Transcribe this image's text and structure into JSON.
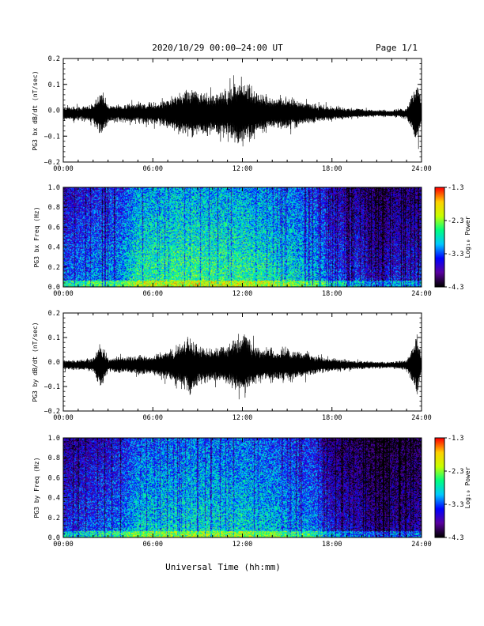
{
  "header": {
    "title": "2020/10/29  00:00–24:00 UT",
    "page": "Page 1/1"
  },
  "footer": {
    "xlabel": "Universal Time (hh:mm)"
  },
  "colors": {
    "trace": "#000000",
    "colormap": [
      "#000000",
      "#5a00a0",
      "#0000ff",
      "#00c8ff",
      "#00ff80",
      "#c8ff00",
      "#ffd000",
      "#ff0000"
    ]
  },
  "chart_data": [
    {
      "type": "line",
      "title": "",
      "xlabel": "",
      "ylabel": "PG3 bx dB/dt (nT/sec)",
      "xlim": [
        0,
        24
      ],
      "ylim": [
        -0.2,
        0.2
      ],
      "x_tick_labels": [
        "00:00",
        "06:00",
        "12:00",
        "18:00",
        "24:00"
      ],
      "y_tick_labels": [
        "0.2",
        "0.1",
        "0.0",
        "−0.1",
        "−0.2"
      ],
      "amplitude_envelope_hours": [
        0,
        1,
        2,
        2.5,
        3,
        4,
        5,
        6,
        7,
        8,
        9,
        10,
        11,
        12,
        13,
        14,
        15,
        16,
        17,
        18,
        19,
        20,
        21,
        22,
        23,
        23.7,
        24
      ],
      "amplitude_envelope_values": [
        0.04,
        0.04,
        0.05,
        0.15,
        0.05,
        0.05,
        0.06,
        0.06,
        0.08,
        0.12,
        0.13,
        0.12,
        0.13,
        0.2,
        0.12,
        0.09,
        0.09,
        0.07,
        0.05,
        0.04,
        0.03,
        0.025,
        0.02,
        0.02,
        0.03,
        0.19,
        0.04
      ],
      "grid": false,
      "legend": "none"
    },
    {
      "type": "heatmap",
      "title": "",
      "xlabel": "",
      "ylabel": "PG3 bx Freq (Hz)",
      "xlim": [
        0,
        24
      ],
      "ylim": [
        0,
        1.0
      ],
      "x_tick_labels": [
        "00:00",
        "06:00",
        "12:00",
        "18:00",
        "24:00"
      ],
      "y_tick_labels": [
        "1.0",
        "0.8",
        "0.6",
        "0.4",
        "0.2",
        "0.0"
      ],
      "colorbar_label": "Log₁₀ Power",
      "colorbar_range": [
        -4.3,
        -1.3
      ],
      "colorbar_tick_labels": [
        "-1.3",
        "-2.3",
        "-3.3",
        "-4.3"
      ],
      "power_profile_hours": [
        0,
        2,
        4,
        5,
        8,
        12,
        15,
        17,
        18,
        20,
        21.5,
        22,
        23,
        24
      ],
      "power_profile_values": [
        -3.3,
        -3.1,
        -3.0,
        -2.65,
        -2.55,
        -2.6,
        -2.75,
        -2.95,
        -3.3,
        -3.45,
        -3.75,
        -3.5,
        -3.55,
        -3.45
      ]
    },
    {
      "type": "line",
      "title": "",
      "xlabel": "",
      "ylabel": "PG3 by dB/dt (nT/sec)",
      "xlim": [
        0,
        24
      ],
      "ylim": [
        -0.2,
        0.2
      ],
      "x_tick_labels": [
        "00:00",
        "06:00",
        "12:00",
        "18:00",
        "24:00"
      ],
      "y_tick_labels": [
        "0.2",
        "0.1",
        "0.0",
        "−0.1",
        "−0.2"
      ],
      "amplitude_envelope_hours": [
        0,
        1,
        2,
        2.5,
        3,
        4,
        5,
        6,
        7,
        8,
        8.5,
        9,
        10,
        11,
        12,
        13,
        14,
        15,
        16,
        17,
        18,
        19,
        20,
        21,
        22,
        23,
        23.7,
        24
      ],
      "amplitude_envelope_values": [
        0.03,
        0.03,
        0.04,
        0.14,
        0.04,
        0.05,
        0.06,
        0.06,
        0.09,
        0.14,
        0.18,
        0.12,
        0.1,
        0.12,
        0.19,
        0.11,
        0.1,
        0.1,
        0.08,
        0.05,
        0.04,
        0.03,
        0.025,
        0.02,
        0.02,
        0.03,
        0.19,
        0.04
      ],
      "grid": false,
      "legend": "none"
    },
    {
      "type": "heatmap",
      "title": "",
      "xlabel": "",
      "ylabel": "PG3 by Freq (Hz)",
      "xlim": [
        0,
        24
      ],
      "ylim": [
        0,
        1.0
      ],
      "x_tick_labels": [
        "00:00",
        "06:00",
        "12:00",
        "18:00",
        "24:00"
      ],
      "y_tick_labels": [
        "1.0",
        "0.8",
        "0.6",
        "0.4",
        "0.2",
        "0.0"
      ],
      "colorbar_label": "Log₁₀ Power",
      "colorbar_range": [
        -4.3,
        -1.3
      ],
      "colorbar_tick_labels": [
        "-1.3",
        "-2.3",
        "-3.3",
        "-4.3"
      ],
      "power_profile_hours": [
        0,
        2,
        4,
        5,
        8,
        12,
        15,
        17,
        18,
        20,
        21.5,
        22,
        23,
        24
      ],
      "power_profile_values": [
        -3.45,
        -3.3,
        -3.15,
        -2.85,
        -2.75,
        -2.8,
        -2.95,
        -3.15,
        -3.55,
        -3.7,
        -3.95,
        -3.7,
        -3.8,
        -3.7
      ]
    }
  ]
}
